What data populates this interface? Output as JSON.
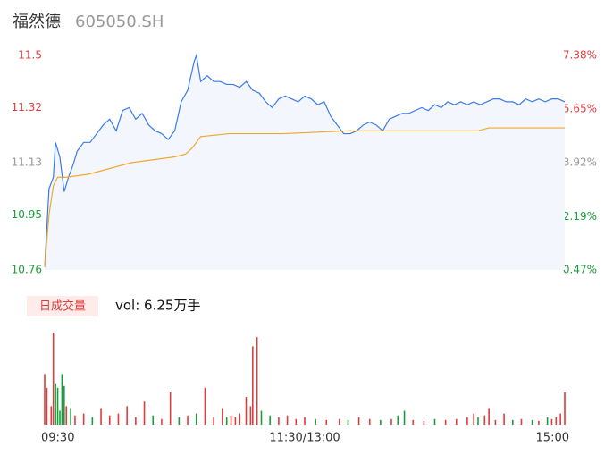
{
  "header": {
    "name": "福然德",
    "code": "605050.SH"
  },
  "chart_data": [
    {
      "type": "line",
      "ylim": [
        10.76,
        11.5
      ],
      "yticks": [
        10.76,
        10.95,
        11.13,
        11.32,
        11.5
      ],
      "ytick_colors": [
        "#1a9c3a",
        "#1a9c3a",
        "#999999",
        "#e03c3c",
        "#e03c3c"
      ],
      "y2lim": [
        0.47,
        7.38
      ],
      "y2ticks": [
        {
          "value": 0.47,
          "label": "0.47%"
        },
        {
          "value": 2.19,
          "label": "2.19%"
        },
        {
          "value": 3.92,
          "label": "3.92%"
        },
        {
          "value": 5.65,
          "label": "5.65%"
        },
        {
          "value": 7.38,
          "label": "7.38%"
        }
      ],
      "xlim": [
        0,
        240
      ],
      "xticks": [
        {
          "value": 0,
          "label": "09:30"
        },
        {
          "value": 120,
          "label": "11:30/13:00"
        },
        {
          "value": 240,
          "label": "15:00"
        }
      ],
      "series": [
        {
          "name": "price",
          "color": "#3a7bea",
          "area": "#f3f7fd",
          "x": [
            0,
            2,
            4,
            5,
            7,
            9,
            11,
            13,
            15,
            18,
            21,
            24,
            27,
            30,
            33,
            36,
            39,
            42,
            45,
            48,
            51,
            54,
            57,
            60,
            63,
            66,
            69,
            70,
            72,
            75,
            78,
            81,
            84,
            87,
            90,
            93,
            96,
            99,
            102,
            105,
            108,
            111,
            114,
            117,
            120,
            123,
            126,
            129,
            132,
            135,
            138,
            141,
            144,
            147,
            150,
            153,
            156,
            159,
            162,
            165,
            168,
            171,
            174,
            177,
            180,
            183,
            186,
            189,
            192,
            195,
            198,
            201,
            204,
            207,
            210,
            213,
            216,
            219,
            222,
            225,
            228,
            231,
            234,
            237,
            240
          ],
          "values": [
            10.77,
            11.04,
            11.08,
            11.2,
            11.15,
            11.03,
            11.08,
            11.12,
            11.17,
            11.2,
            11.2,
            11.23,
            11.26,
            11.28,
            11.24,
            11.31,
            11.32,
            11.28,
            11.3,
            11.26,
            11.24,
            11.23,
            11.21,
            11.24,
            11.34,
            11.38,
            11.48,
            11.5,
            11.41,
            11.43,
            11.41,
            11.41,
            11.4,
            11.4,
            11.39,
            11.41,
            11.38,
            11.37,
            11.34,
            11.32,
            11.35,
            11.36,
            11.35,
            11.34,
            11.36,
            11.35,
            11.33,
            11.34,
            11.29,
            11.26,
            11.23,
            11.23,
            11.24,
            11.26,
            11.27,
            11.26,
            11.24,
            11.28,
            11.29,
            11.3,
            11.3,
            11.31,
            11.32,
            11.31,
            11.33,
            11.32,
            11.34,
            11.33,
            11.34,
            11.33,
            11.34,
            11.33,
            11.34,
            11.35,
            11.35,
            11.34,
            11.34,
            11.33,
            11.35,
            11.34,
            11.35,
            11.34,
            11.35,
            11.35,
            11.34
          ]
        },
        {
          "name": "average",
          "color": "#f0a830",
          "x": [
            0,
            2,
            4,
            6,
            10,
            20,
            30,
            40,
            50,
            60,
            65,
            68,
            72,
            85,
            110,
            140,
            200,
            205,
            240
          ],
          "values": [
            10.77,
            10.95,
            11.05,
            11.08,
            11.08,
            11.09,
            11.11,
            11.13,
            11.14,
            11.15,
            11.16,
            11.18,
            11.22,
            11.23,
            11.23,
            11.24,
            11.24,
            11.25,
            11.25
          ]
        }
      ]
    },
    {
      "type": "bar",
      "button": "日成交量",
      "label": "vol: 6.25万手",
      "ylim": [
        0,
        100
      ],
      "xlim": [
        0,
        240
      ],
      "up_color": "#e03c3c",
      "down_color": "#1a9c3a",
      "x": [
        0,
        1,
        3,
        4,
        5,
        6,
        7,
        8,
        9,
        10,
        12,
        14,
        18,
        22,
        26,
        30,
        34,
        38,
        42,
        46,
        50,
        54,
        58,
        62,
        66,
        70,
        74,
        78,
        82,
        84,
        86,
        88,
        90,
        93,
        95,
        96,
        98,
        100,
        104,
        108,
        112,
        116,
        120,
        125,
        130,
        136,
        140,
        145,
        150,
        155,
        160,
        163,
        166,
        170,
        175,
        180,
        185,
        190,
        195,
        198,
        200,
        203,
        205,
        208,
        212,
        216,
        220,
        225,
        228,
        232,
        234,
        236,
        238,
        240
      ],
      "values": [
        55,
        40,
        20,
        100,
        45,
        40,
        15,
        55,
        42,
        20,
        18,
        10,
        12,
        8,
        18,
        10,
        12,
        20,
        8,
        25,
        10,
        6,
        35,
        8,
        10,
        12,
        40,
        8,
        18,
        8,
        10,
        8,
        12,
        30,
        20,
        85,
        95,
        15,
        10,
        8,
        10,
        6,
        8,
        6,
        5,
        6,
        5,
        8,
        6,
        5,
        6,
        10,
        15,
        5,
        4,
        6,
        5,
        6,
        8,
        12,
        8,
        10,
        18,
        5,
        12,
        5,
        6,
        5,
        4,
        8,
        6,
        8,
        12,
        35
      ],
      "directions": [
        "up",
        "up",
        "up",
        "up",
        "down",
        "down",
        "down",
        "down",
        "down",
        "up",
        "down",
        "up",
        "up",
        "down",
        "up",
        "up",
        "up",
        "up",
        "up",
        "up",
        "down",
        "up",
        "up",
        "down",
        "up",
        "down",
        "up",
        "up",
        "up",
        "down",
        "up",
        "up",
        "up",
        "up",
        "up",
        "up",
        "up",
        "down",
        "down",
        "up",
        "up",
        "up",
        "up",
        "down",
        "up",
        "up",
        "down",
        "up",
        "up",
        "down",
        "up",
        "down",
        "down",
        "up",
        "up",
        "down",
        "up",
        "up",
        "up",
        "up",
        "down",
        "up",
        "up",
        "up",
        "up",
        "down",
        "up",
        "down",
        "up",
        "down",
        "up",
        "up",
        "up",
        "up"
      ]
    }
  ]
}
